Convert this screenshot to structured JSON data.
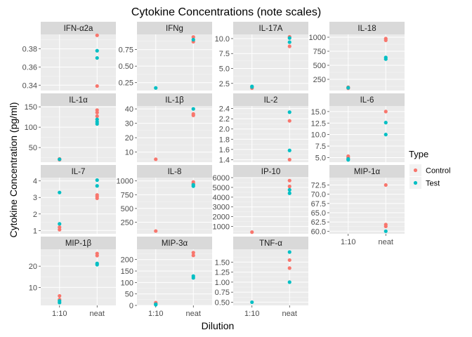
{
  "chart_data": {
    "type": "scatter",
    "title": "Cytokine Concentrations (note scales)",
    "xlabel": "Dilution",
    "ylabel": "Cytokine Concentration (pg/ml)",
    "x_categories": [
      "1:10",
      "neat"
    ],
    "legend": {
      "title": "Type",
      "position": "right",
      "entries": [
        {
          "label": "Control",
          "color": "#F8766D"
        },
        {
          "label": "Test",
          "color": "#00BFC4"
        }
      ]
    },
    "colors": {
      "Control": "#F8766D",
      "Test": "#00BFC4",
      "panel_bg": "#EBEBEB",
      "strip_bg": "#D9D9D9"
    },
    "panels": [
      {
        "name": "IFN-α2a",
        "ylim": [
          0.334,
          0.396
        ],
        "yticks": [
          0.34,
          0.36,
          0.38
        ],
        "tick_labels": [
          "0.34",
          "0.36",
          "0.38"
        ],
        "points": [
          {
            "dilution": "neat",
            "type": "Control",
            "value": 0.395
          },
          {
            "dilution": "neat",
            "type": "Control",
            "value": 0.339
          },
          {
            "dilution": "neat",
            "type": "Test",
            "value": 0.378
          },
          {
            "dilution": "neat",
            "type": "Test",
            "value": 0.37
          }
        ]
      },
      {
        "name": "IFNg",
        "ylim": [
          0.13,
          0.98
        ],
        "yticks": [
          0.25,
          0.5,
          0.75
        ],
        "tick_labels": [
          "0.25",
          "0.50",
          "0.75"
        ],
        "points": [
          {
            "dilution": "1:10",
            "type": "Test",
            "value": 0.17
          },
          {
            "dilution": "neat",
            "type": "Control",
            "value": 0.94
          },
          {
            "dilution": "neat",
            "type": "Control",
            "value": 0.87
          },
          {
            "dilution": "neat",
            "type": "Test",
            "value": 0.9
          }
        ]
      },
      {
        "name": "IL-17A",
        "ylim": [
          1.3,
          10.7
        ],
        "yticks": [
          2.5,
          5.0,
          7.5,
          10.0
        ],
        "tick_labels": [
          "2.5",
          "5.0",
          "7.5",
          "10.0"
        ],
        "points": [
          {
            "dilution": "1:10",
            "type": "Control",
            "value": 1.7
          },
          {
            "dilution": "1:10",
            "type": "Test",
            "value": 2.0
          },
          {
            "dilution": "1:10",
            "type": "Test",
            "value": 1.9
          },
          {
            "dilution": "neat",
            "type": "Control",
            "value": 10.3
          },
          {
            "dilution": "neat",
            "type": "Control",
            "value": 8.7
          },
          {
            "dilution": "neat",
            "type": "Test",
            "value": 10.1
          },
          {
            "dilution": "neat",
            "type": "Test",
            "value": 9.4
          }
        ]
      },
      {
        "name": "IL-18",
        "ylim": [
          50,
          1050
        ],
        "yticks": [
          250,
          500,
          750,
          1000
        ],
        "tick_labels": [
          "250",
          "500",
          "750",
          "1000"
        ],
        "points": [
          {
            "dilution": "1:10",
            "type": "Control",
            "value": 110
          },
          {
            "dilution": "1:10",
            "type": "Control",
            "value": 90
          },
          {
            "dilution": "1:10",
            "type": "Test",
            "value": 100
          },
          {
            "dilution": "neat",
            "type": "Control",
            "value": 975
          },
          {
            "dilution": "neat",
            "type": "Control",
            "value": 945
          },
          {
            "dilution": "neat",
            "type": "Test",
            "value": 640
          },
          {
            "dilution": "neat",
            "type": "Test",
            "value": 610
          }
        ]
      },
      {
        "name": "IL-1α",
        "ylim": [
          14,
          152
        ],
        "yticks": [
          50,
          100,
          150
        ],
        "tick_labels": [
          "50",
          "100",
          "150"
        ],
        "points": [
          {
            "dilution": "1:10",
            "type": "Control",
            "value": 22
          },
          {
            "dilution": "1:10",
            "type": "Control",
            "value": 20
          },
          {
            "dilution": "1:10",
            "type": "Test",
            "value": 21
          },
          {
            "dilution": "neat",
            "type": "Control",
            "value": 142
          },
          {
            "dilution": "neat",
            "type": "Control",
            "value": 136
          },
          {
            "dilution": "neat",
            "type": "Control",
            "value": 127
          },
          {
            "dilution": "neat",
            "type": "Test",
            "value": 119
          },
          {
            "dilution": "neat",
            "type": "Test",
            "value": 113
          },
          {
            "dilution": "neat",
            "type": "Test",
            "value": 108
          }
        ]
      },
      {
        "name": "IL-1β",
        "ylim": [
          3,
          42
        ],
        "yticks": [
          10,
          20,
          30,
          40
        ],
        "tick_labels": [
          "10",
          "20",
          "30",
          "40"
        ],
        "points": [
          {
            "dilution": "1:10",
            "type": "Control",
            "value": 5
          },
          {
            "dilution": "neat",
            "type": "Control",
            "value": 36.5
          },
          {
            "dilution": "neat",
            "type": "Control",
            "value": 35.5
          },
          {
            "dilution": "neat",
            "type": "Test",
            "value": 40
          }
        ]
      },
      {
        "name": "IL-2",
        "ylim": [
          1.35,
          2.45
        ],
        "yticks": [
          1.4,
          1.6,
          1.8,
          2.0,
          2.2,
          2.4
        ],
        "tick_labels": [
          "1.4",
          "1.6",
          "1.8",
          "2.0",
          "2.2",
          "2.4"
        ],
        "points": [
          {
            "dilution": "neat",
            "type": "Test",
            "value": 2.33
          },
          {
            "dilution": "neat",
            "type": "Control",
            "value": 2.16
          },
          {
            "dilution": "neat",
            "type": "Test",
            "value": 1.58
          },
          {
            "dilution": "neat",
            "type": "Control",
            "value": 1.4
          }
        ]
      },
      {
        "name": "IL-6",
        "ylim": [
          4.0,
          16.2
        ],
        "yticks": [
          5.0,
          7.5,
          10.0,
          12.5,
          15.0
        ],
        "tick_labels": [
          "5.0",
          "7.5",
          "10.0",
          "12.5",
          "15.0"
        ],
        "points": [
          {
            "dilution": "1:10",
            "type": "Control",
            "value": 5.3
          },
          {
            "dilution": "1:10",
            "type": "Control",
            "value": 5.0
          },
          {
            "dilution": "1:10",
            "type": "Test",
            "value": 4.7
          },
          {
            "dilution": "1:10",
            "type": "Test",
            "value": 4.5
          },
          {
            "dilution": "neat",
            "type": "Control",
            "value": 15.0
          },
          {
            "dilution": "neat",
            "type": "Test",
            "value": 12.6
          },
          {
            "dilution": "neat",
            "type": "Test",
            "value": 10.0
          }
        ]
      },
      {
        "name": "IL-7",
        "ylim": [
          0.8,
          4.2
        ],
        "yticks": [
          1,
          2,
          3,
          4
        ],
        "tick_labels": [
          "1",
          "2",
          "3",
          "4"
        ],
        "points": [
          {
            "dilution": "1:10",
            "type": "Test",
            "value": 3.3
          },
          {
            "dilution": "1:10",
            "type": "Test",
            "value": 1.4
          },
          {
            "dilution": "1:10",
            "type": "Control",
            "value": 1.2
          },
          {
            "dilution": "1:10",
            "type": "Control",
            "value": 1.05
          },
          {
            "dilution": "neat",
            "type": "Test",
            "value": 4.05
          },
          {
            "dilution": "neat",
            "type": "Test",
            "value": 3.7
          },
          {
            "dilution": "neat",
            "type": "Control",
            "value": 3.15
          },
          {
            "dilution": "neat",
            "type": "Control",
            "value": 3.05
          },
          {
            "dilution": "neat",
            "type": "Control",
            "value": 2.95
          }
        ]
      },
      {
        "name": "IL-8",
        "ylim": [
          40,
          1060
        ],
        "yticks": [
          250,
          500,
          750,
          1000
        ],
        "tick_labels": [
          "250",
          "500",
          "750",
          "1000"
        ],
        "points": [
          {
            "dilution": "1:10",
            "type": "Control",
            "value": 90
          },
          {
            "dilution": "neat",
            "type": "Control",
            "value": 980
          },
          {
            "dilution": "neat",
            "type": "Control",
            "value": 950
          },
          {
            "dilution": "neat",
            "type": "Test",
            "value": 930
          },
          {
            "dilution": "neat",
            "type": "Test",
            "value": 905
          }
        ]
      },
      {
        "name": "IP-10",
        "ylim": [
          250,
          6000
        ],
        "yticks": [
          1000,
          2000,
          3000,
          4000,
          5000,
          6000
        ],
        "tick_labels": [
          "1000",
          "2000",
          "3000",
          "4000",
          "5000",
          "6000"
        ],
        "points": [
          {
            "dilution": "1:10",
            "type": "Control",
            "value": 420
          },
          {
            "dilution": "neat",
            "type": "Control",
            "value": 5700
          },
          {
            "dilution": "neat",
            "type": "Control",
            "value": 5100
          },
          {
            "dilution": "neat",
            "type": "Test",
            "value": 4750
          },
          {
            "dilution": "neat",
            "type": "Test",
            "value": 4400
          }
        ]
      },
      {
        "name": "MIP-1α",
        "ylim": [
          59.3,
          74.5
        ],
        "yticks": [
          60.0,
          62.5,
          65.0,
          67.5,
          70.0,
          72.5
        ],
        "tick_labels": [
          "60.0",
          "62.5",
          "65.0",
          "67.5",
          "70.0",
          "72.5"
        ],
        "points": [
          {
            "dilution": "neat",
            "type": "Control",
            "value": 72.5
          },
          {
            "dilution": "neat",
            "type": "Control",
            "value": 61.8
          },
          {
            "dilution": "neat",
            "type": "Control",
            "value": 61.3
          },
          {
            "dilution": "neat",
            "type": "Test",
            "value": 60.0
          }
        ]
      },
      {
        "name": "MIP-1β",
        "ylim": [
          1.5,
          28
        ],
        "yticks": [
          10,
          20
        ],
        "tick_labels": [
          "10",
          "20"
        ],
        "points": [
          {
            "dilution": "1:10",
            "type": "Control",
            "value": 6.0
          },
          {
            "dilution": "1:10",
            "type": "Control",
            "value": 4.3
          },
          {
            "dilution": "1:10",
            "type": "Test",
            "value": 3.6
          },
          {
            "dilution": "1:10",
            "type": "Test",
            "value": 2.8
          },
          {
            "dilution": "neat",
            "type": "Control",
            "value": 26.0
          },
          {
            "dilution": "neat",
            "type": "Control",
            "value": 25.0
          },
          {
            "dilution": "neat",
            "type": "Test",
            "value": 21.3
          },
          {
            "dilution": "neat",
            "type": "Test",
            "value": 20.7
          }
        ]
      },
      {
        "name": "MIP-3α",
        "ylim": [
          0,
          245
        ],
        "yticks": [
          0,
          50,
          100,
          150,
          200
        ],
        "tick_labels": [
          "0",
          "50",
          "100",
          "150",
          "200"
        ],
        "points": [
          {
            "dilution": "1:10",
            "type": "Control",
            "value": 12
          },
          {
            "dilution": "1:10",
            "type": "Control",
            "value": 8
          },
          {
            "dilution": "1:10",
            "type": "Test",
            "value": 5
          },
          {
            "dilution": "1:10",
            "type": "Test",
            "value": 3
          },
          {
            "dilution": "neat",
            "type": "Control",
            "value": 230
          },
          {
            "dilution": "neat",
            "type": "Control",
            "value": 218
          },
          {
            "dilution": "neat",
            "type": "Test",
            "value": 128
          },
          {
            "dilution": "neat",
            "type": "Test",
            "value": 120
          }
        ]
      },
      {
        "name": "TNF-α",
        "ylim": [
          0.42,
          1.82
        ],
        "yticks": [
          0.5,
          0.75,
          1.0,
          1.25,
          1.5
        ],
        "tick_labels": [
          "0.50",
          "0.75",
          "1.00",
          "1.25",
          "1.50"
        ],
        "points": [
          {
            "dilution": "1:10",
            "type": "Test",
            "value": 0.5
          },
          {
            "dilution": "neat",
            "type": "Test",
            "value": 1.75
          },
          {
            "dilution": "neat",
            "type": "Control",
            "value": 1.55
          },
          {
            "dilution": "neat",
            "type": "Control",
            "value": 1.35
          },
          {
            "dilution": "neat",
            "type": "Test",
            "value": 1.0
          }
        ]
      }
    ]
  }
}
